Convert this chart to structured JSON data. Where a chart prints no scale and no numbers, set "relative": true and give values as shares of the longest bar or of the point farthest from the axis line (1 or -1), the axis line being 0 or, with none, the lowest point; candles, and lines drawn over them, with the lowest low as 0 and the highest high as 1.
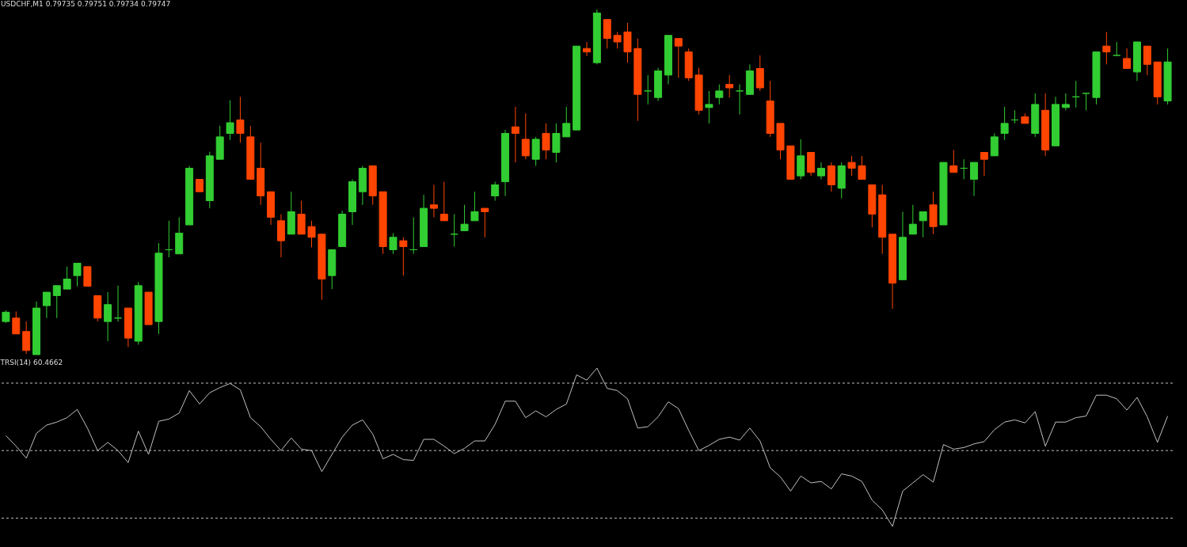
{
  "chart_data": [
    {
      "type": "candlestick",
      "title": "USDCHF,M1 0.79735 0.79751 0.79734 0.79747",
      "relative": true,
      "tick_labels": false,
      "categories": [
        null,
        null,
        null,
        null,
        null,
        null,
        null,
        null,
        null,
        null,
        null,
        null,
        null,
        null,
        null,
        null,
        null,
        null,
        null,
        null,
        null,
        null,
        null,
        null,
        null,
        null,
        null,
        null,
        null,
        null,
        null,
        null,
        null,
        null,
        null,
        null,
        null,
        null,
        null,
        null,
        null,
        null,
        null,
        null,
        null,
        null,
        null,
        null,
        null,
        null,
        null,
        null,
        null,
        null,
        null,
        null,
        null,
        null,
        null,
        null,
        null,
        null,
        null,
        null,
        null,
        null,
        null,
        null,
        null,
        null,
        null,
        null,
        null,
        null,
        null,
        null,
        null,
        null,
        null,
        null,
        null,
        null,
        null,
        null,
        null,
        null,
        null,
        null,
        null,
        null,
        null,
        null,
        null,
        null,
        null,
        null,
        null,
        null,
        null,
        null,
        null,
        null,
        null,
        null,
        null,
        null,
        null,
        null,
        null,
        null,
        null,
        null,
        null,
        null,
        null
      ],
      "ohlc": [
        [
          0.096,
          0.128,
          0.092,
          0.123
        ],
        [
          0.106,
          0.125,
          0.06,
          0.06
        ],
        [
          0.067,
          0.096,
          0.002,
          0.012
        ],
        [
          0,
          0.154,
          0,
          0.135
        ],
        [
          0.142,
          0.181,
          0.106,
          0.181
        ],
        [
          0.171,
          0.2,
          0.106,
          0.2
        ],
        [
          0.19,
          0.255,
          0.19,
          0.219
        ],
        [
          0.229,
          0.265,
          0.198,
          0.265
        ],
        [
          0.255,
          0.255,
          0.198,
          0.198
        ],
        [
          0.171,
          0.171,
          0.096,
          0.106
        ],
        [
          0.096,
          0.181,
          0.039,
          0.145
        ],
        [
          0.106,
          0.2,
          0.096,
          0.106
        ],
        [
          0.135,
          0.135,
          0.022,
          0.048
        ],
        [
          0.039,
          0.21,
          0.029,
          0.2
        ],
        [
          0.181,
          0.181,
          0.087,
          0.087
        ],
        [
          0.096,
          0.323,
          0.06,
          0.294
        ],
        [
          0.304,
          0.388,
          0.282,
          0.304
        ],
        [
          0.292,
          0.398,
          0.292,
          0.352
        ],
        [
          0.376,
          0.547,
          0.376,
          0.54
        ],
        [
          0.508,
          0.508,
          0.472,
          0.472
        ],
        [
          0.446,
          0.588,
          0.424,
          0.576
        ],
        [
          0.566,
          0.663,
          0.566,
          0.631
        ],
        [
          0.641,
          0.737,
          0.622,
          0.672
        ],
        [
          0.68,
          0.747,
          0.614,
          0.641
        ],
        [
          0.631,
          0.663,
          0.508,
          0.508
        ],
        [
          0.54,
          0.614,
          0.434,
          0.46
        ],
        [
          0.472,
          0.472,
          0.376,
          0.398
        ],
        [
          0.388,
          0.407,
          0.282,
          0.33
        ],
        [
          0.349,
          0.472,
          0.349,
          0.414
        ],
        [
          0.407,
          0.446,
          0.349,
          0.349
        ],
        [
          0.371,
          0.388,
          0.311,
          0.34
        ],
        [
          0.349,
          0.349,
          0.159,
          0.219
        ],
        [
          0.229,
          0.304,
          0.19,
          0.304
        ],
        [
          0.313,
          0.417,
          0.313,
          0.407
        ],
        [
          0.414,
          0.508,
          0.376,
          0.501
        ],
        [
          0.472,
          0.547,
          0.434,
          0.54
        ],
        [
          0.547,
          0.547,
          0.434,
          0.46
        ],
        [
          0.472,
          0.472,
          0.292,
          0.313
        ],
        [
          0.304,
          0.352,
          0.292,
          0.34
        ],
        [
          0.33,
          0.34,
          0.229,
          0.313
        ],
        [
          0.304,
          0.398,
          0.292,
          0.304
        ],
        [
          0.313,
          0.463,
          0.313,
          0.424
        ],
        [
          0.434,
          0.492,
          0.398,
          0.424
        ],
        [
          0.407,
          0.501,
          0.388,
          0.388
        ],
        [
          0.349,
          0.407,
          0.313,
          0.349
        ],
        [
          0.359,
          0.434,
          0.359,
          0.378
        ],
        [
          0.388,
          0.472,
          0.388,
          0.414
        ],
        [
          0.424,
          0.424,
          0.34,
          0.414
        ],
        [
          0.46,
          0.501,
          0.446,
          0.492
        ],
        [
          0.501,
          0.651,
          0.46,
          0.641
        ],
        [
          0.66,
          0.718,
          0.557,
          0.641
        ],
        [
          0.624,
          0.699,
          0.566,
          0.576
        ],
        [
          0.566,
          0.631,
          0.547,
          0.624
        ],
        [
          0.641,
          0.67,
          0.566,
          0.593
        ],
        [
          0.586,
          0.67,
          0.557,
          0.641
        ],
        [
          0.631,
          0.718,
          0.631,
          0.67
        ],
        [
          0.651,
          0.894,
          0.651,
          0.894
        ],
        [
          0.887,
          0.906,
          0.865,
          0.877
        ],
        [
          0.846,
          1,
          0.841,
          0.99
        ],
        [
          0.971,
          0.971,
          0.887,
          0.916
        ],
        [
          0.925,
          0.935,
          0.887,
          0.906
        ],
        [
          0.935,
          0.961,
          0.846,
          0.877
        ],
        [
          0.887,
          0.916,
          0.677,
          0.754
        ],
        [
          0.764,
          0.81,
          0.725,
          0.764
        ],
        [
          0.745,
          0.831,
          0.735,
          0.822
        ],
        [
          0.81,
          0.925,
          0.783,
          0.925
        ],
        [
          0.916,
          0.916,
          0.802,
          0.894
        ],
        [
          0.877,
          0.887,
          0.793,
          0.802
        ],
        [
          0.81,
          0.831,
          0.696,
          0.708
        ],
        [
          0.716,
          0.764,
          0.67,
          0.725
        ],
        [
          0.745,
          0.783,
          0.725,
          0.764
        ],
        [
          0.783,
          0.81,
          0.745,
          0.773
        ],
        [
          0.764,
          0.783,
          0.696,
          0.764
        ],
        [
          0.754,
          0.841,
          0.754,
          0.822
        ],
        [
          0.829,
          0.867,
          0.764,
          0.773
        ],
        [
          0.735,
          0.793,
          0.631,
          0.641
        ],
        [
          0.67,
          0.67,
          0.566,
          0.593
        ],
        [
          0.605,
          0.605,
          0.508,
          0.508
        ],
        [
          0.518,
          0.624,
          0.508,
          0.576
        ],
        [
          0.586,
          0.586,
          0.518,
          0.528
        ],
        [
          0.518,
          0.557,
          0.508,
          0.54
        ],
        [
          0.547,
          0.557,
          0.472,
          0.492
        ],
        [
          0.482,
          0.557,
          0.453,
          0.547
        ],
        [
          0.557,
          0.576,
          0.518,
          0.54
        ],
        [
          0.547,
          0.576,
          0.508,
          0.508
        ],
        [
          0.492,
          0.492,
          0.369,
          0.407
        ],
        [
          0.463,
          0.492,
          0.292,
          0.34
        ],
        [
          0.349,
          0.349,
          0.133,
          0.207
        ],
        [
          0.217,
          0.414,
          0.217,
          0.34
        ],
        [
          0.349,
          0.434,
          0.349,
          0.378
        ],
        [
          0.388,
          0.414,
          0.34,
          0.414
        ],
        [
          0.434,
          0.472,
          0.349,
          0.371
        ],
        [
          0.376,
          0.557,
          0.376,
          0.557
        ],
        [
          0.547,
          0.593,
          0.528,
          0.528
        ],
        [
          0.54,
          0.566,
          0.508,
          0.54
        ],
        [
          0.508,
          0.557,
          0.46,
          0.557
        ],
        [
          0.586,
          0.586,
          0.518,
          0.566
        ],
        [
          0.576,
          0.641,
          0.576,
          0.631
        ],
        [
          0.641,
          0.718,
          0.622,
          0.67
        ],
        [
          0.68,
          0.708,
          0.67,
          0.68
        ],
        [
          0.689,
          0.699,
          0.67,
          0.67
        ],
        [
          0.641,
          0.757,
          0.631,
          0.725
        ],
        [
          0.708,
          0.757,
          0.576,
          0.593
        ],
        [
          0.605,
          0.747,
          0.605,
          0.725
        ],
        [
          0.716,
          0.757,
          0.708,
          0.725
        ],
        [
          0.747,
          0.793,
          0.716,
          0.747
        ],
        [
          0.757,
          0.757,
          0.708,
          0.757
        ],
        [
          0.745,
          0.877,
          0.725,
          0.877
        ],
        [
          0.894,
          0.935,
          0.841,
          0.877
        ],
        [
          0.867,
          0.906,
          0.867,
          0.867
        ],
        [
          0.858,
          0.887,
          0.829,
          0.829
        ],
        [
          0.819,
          0.906,
          0.793,
          0.906
        ],
        [
          0.894,
          0.894,
          0.81,
          0.841
        ],
        [
          0.848,
          0.848,
          0.725,
          0.747
        ],
        [
          0.735,
          0.887,
          0.725,
          0.848
        ]
      ],
      "colors": [
        "#32cd32",
        "#ff4500",
        "#ff4500",
        "#32cd32",
        "#32cd32",
        "#32cd32",
        "#32cd32",
        "#32cd32",
        "#ff4500",
        "#ff4500",
        "#32cd32",
        "#32cd32",
        "#ff4500",
        "#32cd32",
        "#ff4500",
        "#32cd32",
        "#32cd32",
        "#32cd32",
        "#32cd32",
        "#ff4500",
        "#32cd32",
        "#32cd32",
        "#32cd32",
        "#ff4500",
        "#ff4500",
        "#ff4500",
        "#ff4500",
        "#ff4500",
        "#32cd32",
        "#ff4500",
        "#ff4500",
        "#ff4500",
        "#32cd32",
        "#32cd32",
        "#32cd32",
        "#32cd32",
        "#ff4500",
        "#ff4500",
        "#32cd32",
        "#ff4500",
        "#32cd32",
        "#32cd32",
        "#ff4500",
        "#ff4500",
        "#32cd32",
        "#32cd32",
        "#32cd32",
        "#ff4500",
        "#32cd32",
        "#32cd32",
        "#ff4500",
        "#ff4500",
        "#32cd32",
        "#ff4500",
        "#32cd32",
        "#32cd32",
        "#32cd32",
        "#ff4500",
        "#32cd32",
        "#ff4500",
        "#ff4500",
        "#ff4500",
        "#ff4500",
        "#32cd32",
        "#32cd32",
        "#32cd32",
        "#ff4500",
        "#ff4500",
        "#ff4500",
        "#32cd32",
        "#32cd32",
        "#ff4500",
        "#32cd32",
        "#32cd32",
        "#ff4500",
        "#ff4500",
        "#ff4500",
        "#ff4500",
        "#32cd32",
        "#ff4500",
        "#32cd32",
        "#ff4500",
        "#32cd32",
        "#ff4500",
        "#ff4500",
        "#ff4500",
        "#ff4500",
        "#ff4500",
        "#32cd32",
        "#32cd32",
        "#32cd32",
        "#ff4500",
        "#32cd32",
        "#ff4500",
        "#32cd32",
        "#32cd32",
        "#ff4500",
        "#32cd32",
        "#32cd32",
        "#32cd32",
        "#ff4500",
        "#32cd32",
        "#ff4500",
        "#32cd32",
        "#32cd32",
        "#32cd32",
        "#32cd32",
        "#32cd32",
        "#ff4500",
        "#32cd32",
        "#ff4500",
        "#32cd32",
        "#ff4500",
        "#ff4500",
        "#32cd32"
      ]
    },
    {
      "type": "line",
      "title": "TRSI(14) 60.4662",
      "relative": true,
      "tick_labels": false,
      "categories": [
        null,
        null,
        null,
        null,
        null,
        null,
        null,
        null,
        null,
        null,
        null,
        null,
        null,
        null,
        null,
        null,
        null,
        null,
        null,
        null,
        null,
        null,
        null,
        null,
        null,
        null,
        null,
        null,
        null,
        null,
        null,
        null,
        null,
        null,
        null,
        null,
        null,
        null,
        null,
        null,
        null,
        null,
        null,
        null,
        null,
        null,
        null,
        null,
        null,
        null,
        null,
        null,
        null,
        null,
        null,
        null,
        null,
        null,
        null,
        null,
        null,
        null,
        null,
        null,
        null,
        null,
        null,
        null,
        null,
        null,
        null,
        null,
        null,
        null,
        null,
        null,
        null,
        null,
        null,
        null,
        null,
        null,
        null,
        null,
        null,
        null,
        null,
        null,
        null,
        null,
        null,
        null,
        null,
        null,
        null,
        null,
        null,
        null,
        null,
        null,
        null,
        null,
        null,
        null,
        null,
        null,
        null,
        null,
        null,
        null,
        null,
        null,
        null,
        null,
        null
      ],
      "series": [
        {
          "color": "#c0c0c0",
          "values": [
            0.573,
            0.507,
            0.431,
            0.588,
            0.64,
            0.659,
            0.687,
            0.739,
            0.621,
            0.479,
            0.531,
            0.479,
            0.403,
            0.602,
            0.455,
            0.664,
            0.678,
            0.716,
            0.858,
            0.773,
            0.844,
            0.877,
            0.903,
            0.863,
            0.687,
            0.63,
            0.55,
            0.479,
            0.559,
            0.488,
            0.479,
            0.346,
            0.455,
            0.564,
            0.64,
            0.673,
            0.583,
            0.427,
            0.455,
            0.422,
            0.417,
            0.55,
            0.55,
            0.507,
            0.46,
            0.493,
            0.54,
            0.54,
            0.645,
            0.791,
            0.791,
            0.687,
            0.73,
            0.692,
            0.739,
            0.773,
            0.957,
            0.924,
            1,
            0.872,
            0.858,
            0.806,
            0.621,
            0.63,
            0.692,
            0.787,
            0.744,
            0.607,
            0.479,
            0.512,
            0.55,
            0.564,
            0.545,
            0.621,
            0.54,
            0.37,
            0.313,
            0.223,
            0.318,
            0.275,
            0.284,
            0.237,
            0.332,
            0.318,
            0.284,
            0.166,
            0.104,
            0,
            0.223,
            0.275,
            0.327,
            0.28,
            0.517,
            0.488,
            0.498,
            0.521,
            0.536,
            0.611,
            0.659,
            0.673,
            0.654,
            0.725,
            0.507,
            0.659,
            0.659,
            0.687,
            0.697,
            0.829,
            0.829,
            0.806,
            0.735,
            0.815,
            0.692,
            0.531,
            0.697
          ]
        }
      ],
      "ref_lines": [
        {
          "axis": "y",
          "value": 0.905,
          "color": "#c0c0c0",
          "line_style": "dashed"
        },
        {
          "axis": "y",
          "value": 0.479,
          "color": "#c0c0c0",
          "line_style": "dashed"
        },
        {
          "axis": "y",
          "value": 0.052,
          "color": "#c0c0c0",
          "line_style": "dashed"
        }
      ]
    }
  ]
}
